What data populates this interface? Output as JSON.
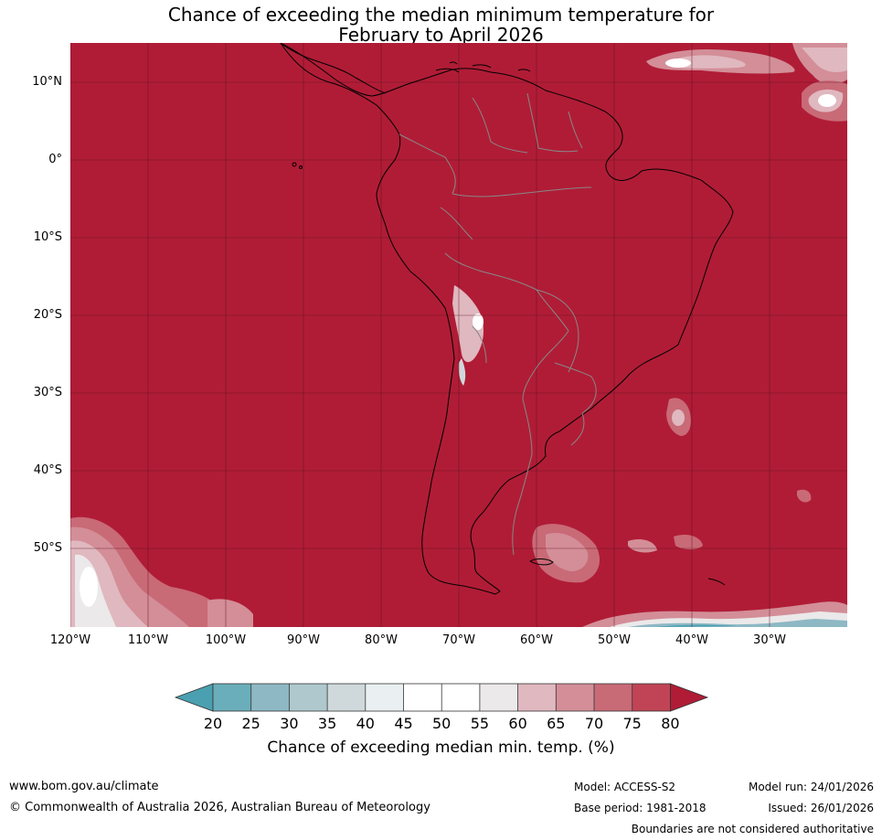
{
  "title": {
    "line1": "Chance of exceeding the median minimum temperature for",
    "line2": "February to April 2026"
  },
  "map": {
    "background_color": "#b01c36",
    "lat_labels": [
      "10°N",
      "0°",
      "10°S",
      "20°S",
      "30°S",
      "40°S",
      "50°S"
    ],
    "lon_labels": [
      "120°W",
      "110°W",
      "100°W",
      "90°W",
      "80°W",
      "70°W",
      "60°W",
      "50°W",
      "40°W",
      "30°W"
    ]
  },
  "colorbar": {
    "colors": [
      "#4aa0b0",
      "#6aaebb",
      "#8db8c4",
      "#aec8cd",
      "#cfd9db",
      "#eaf0f1",
      "#ffffff",
      "#ffffff",
      "#ebe9ea",
      "#e0b8bf",
      "#d38e98",
      "#c96a77",
      "#c04455",
      "#b01c36"
    ],
    "ticks": [
      "20",
      "25",
      "30",
      "35",
      "40",
      "45",
      "50",
      "55",
      "60",
      "65",
      "70",
      "75",
      "80"
    ],
    "label": "Chance of exceeding median min. temp. (%)"
  },
  "footer": {
    "website": "www.bom.gov.au/climate",
    "copyright": "© Commonwealth of Australia 2026, Australian Bureau of Meteorology",
    "model": "Model: ACCESS-S2",
    "base_period": "Base period: 1981-2018",
    "model_run": "Model run: 24/01/2026",
    "issued": "Issued: 26/01/2026",
    "disclaimer": "Boundaries are not considered authoritative"
  }
}
